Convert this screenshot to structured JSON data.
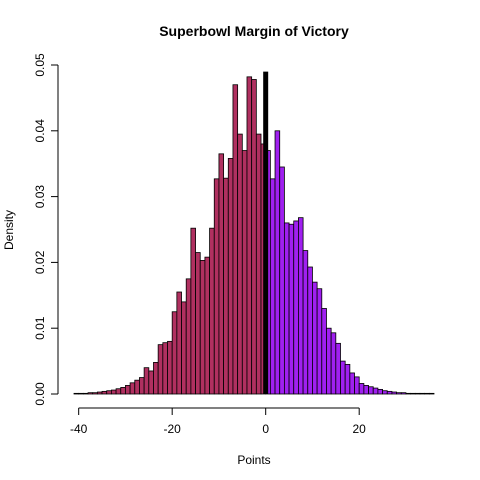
{
  "chart_data": {
    "type": "bar",
    "title": "Superbowl Margin of Victory",
    "xlabel": "Points",
    "ylabel": "Density",
    "xlim": [
      -41,
      36
    ],
    "ylim": [
      0,
      0.05
    ],
    "x_ticks": [
      -40,
      -20,
      0,
      20
    ],
    "y_ticks": [
      0.0,
      0.01,
      0.02,
      0.03,
      0.04,
      0.05
    ],
    "y_tick_labels": [
      "0.00",
      "0.01",
      "0.02",
      "0.03",
      "0.04",
      "0.05"
    ],
    "bin_width": 1,
    "bins_start": [
      -41,
      -40,
      -39,
      -38,
      -37,
      -36,
      -35,
      -34,
      -33,
      -32,
      -31,
      -30,
      -29,
      -28,
      -27,
      -26,
      -25,
      -24,
      -23,
      -22,
      -21,
      -20,
      -19,
      -18,
      -17,
      -16,
      -15,
      -14,
      -13,
      -12,
      -11,
      -10,
      -9,
      -8,
      -7,
      -6,
      -5,
      -4,
      -3,
      -2,
      -1,
      0,
      1,
      2,
      3,
      4,
      5,
      6,
      7,
      8,
      9,
      10,
      11,
      12,
      13,
      14,
      15,
      16,
      17,
      18,
      19,
      20,
      21,
      22,
      23,
      24,
      25,
      26,
      27,
      28,
      29,
      30,
      31,
      32,
      33,
      34,
      35
    ],
    "series": [
      {
        "color": "#B03060",
        "values": [
          0.0001,
          0.0001,
          0.0001,
          0.0002,
          0.0002,
          0.0003,
          0.0004,
          0.0005,
          0.0006,
          0.0008,
          0.001,
          0.0013,
          0.0017,
          0.0021,
          0.0025,
          0.004,
          0.0035,
          0.0048,
          0.0075,
          0.0078,
          0.008,
          0.0125,
          0.0155,
          0.014,
          0.0175,
          0.0252,
          0.0215,
          0.0203,
          0.0208,
          0.0252,
          0.0327,
          0.0365,
          0.0328,
          0.0358,
          0.047,
          0.0395,
          0.037,
          0.0482,
          0.0478,
          0.0395,
          0.038,
          0,
          0,
          0,
          0,
          0,
          0,
          0,
          0,
          0,
          0,
          0,
          0,
          0,
          0,
          0,
          0,
          0,
          0,
          0,
          0,
          0,
          0,
          0,
          0,
          0,
          0,
          0,
          0,
          0,
          0,
          0,
          0,
          0,
          0,
          0,
          0
        ]
      },
      {
        "color": "#A020F0",
        "values": [
          0,
          0,
          0,
          0,
          0,
          0,
          0,
          0,
          0,
          0,
          0,
          0,
          0,
          0,
          0,
          0,
          0,
          0,
          0,
          0,
          0,
          0,
          0,
          0,
          0,
          0,
          0,
          0,
          0,
          0,
          0,
          0,
          0,
          0,
          0,
          0,
          0,
          0,
          0,
          0,
          0,
          0.037,
          0.0327,
          0.04,
          0.0345,
          0.026,
          0.0258,
          0.0263,
          0.0268,
          0.0218,
          0.0193,
          0.017,
          0.016,
          0.013,
          0.01,
          0.0093,
          0.0077,
          0.005,
          0.0045,
          0.0032,
          0.0026,
          0.0016,
          0.0013,
          0.0011,
          0.0009,
          0.0007,
          0.0005,
          0.0004,
          0.0003,
          0.0002,
          0.0002,
          0.0001,
          0.0001,
          0.0001,
          0.0001,
          0.0001,
          0.0001
        ]
      }
    ],
    "reference_line": {
      "x": 0,
      "ymax": 0.049,
      "color": "#000000"
    },
    "grid": false,
    "legend": "none"
  }
}
